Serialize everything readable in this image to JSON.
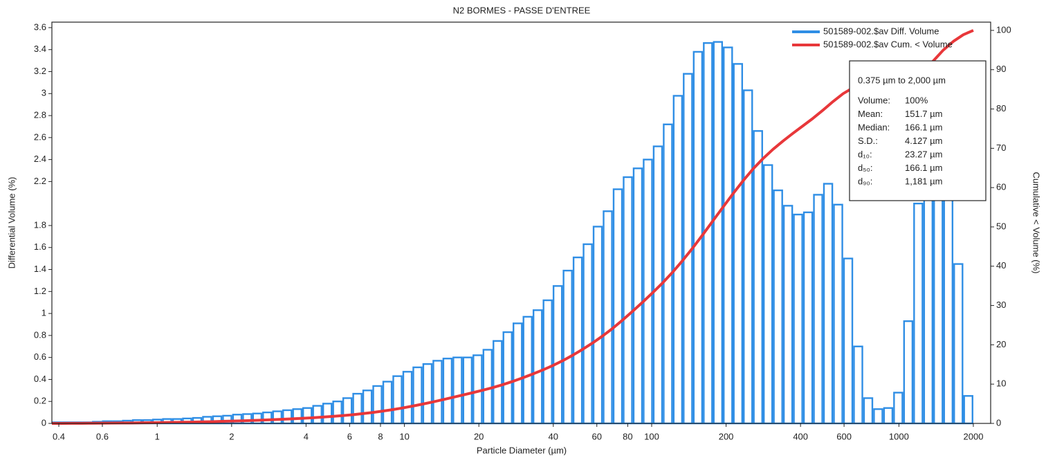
{
  "chart_data": {
    "type": "histogram",
    "title": "N2 BORMES - PASSE D'ENTREE",
    "xlabel": "Particle Diameter (µm)",
    "ylabel": "Differential Volume (%)",
    "y2label": "Cumulative < Volume (%)",
    "xscale": "log",
    "xlim": [
      0.375,
      2350
    ],
    "xticks": [
      0.4,
      0.6,
      1,
      2,
      4,
      6,
      8,
      10,
      20,
      40,
      60,
      80,
      100,
      200,
      400,
      600,
      1000,
      2000
    ],
    "ylim": [
      0,
      3.65
    ],
    "yticks": [
      0,
      0.2,
      0.4,
      0.6,
      0.8,
      1,
      1.2,
      1.4,
      1.6,
      1.8,
      2.2,
      2.4,
      2.6,
      2.8,
      3,
      3.2,
      3.4,
      3.6
    ],
    "y2lim": [
      0,
      102.1
    ],
    "y2ticks": [
      0,
      10,
      20,
      30,
      40,
      50,
      60,
      70,
      80,
      90,
      100
    ],
    "grid": false,
    "legend": "upper right",
    "bins": [
      0.375,
      0.412,
      0.452,
      0.496,
      0.545,
      0.598,
      0.657,
      0.721,
      0.791,
      0.869,
      0.954,
      1.047,
      1.149,
      1.261,
      1.385,
      1.52,
      1.669,
      1.832,
      2.011,
      2.208,
      2.423,
      2.66,
      2.92,
      3.206,
      3.519,
      3.863,
      4.241,
      4.656,
      5.111,
      5.611,
      6.159,
      6.761,
      7.422,
      8.148,
      8.944,
      9.819,
      10.78,
      11.83,
      12.99,
      14.26,
      15.65,
      17.18,
      18.86,
      20.71,
      22.73,
      24.95,
      27.39,
      30.07,
      33.01,
      36.24,
      39.78,
      43.67,
      47.94,
      52.62,
      57.77,
      63.41,
      69.61,
      76.42,
      83.89,
      92.09,
      101.1,
      111,
      121.8,
      133.7,
      146.8,
      161.2,
      176.9,
      194.2,
      213.2,
      234.1,
      256.9,
      282.1,
      309.6,
      339.9,
      373.1,
      409.6,
      449.7,
      493.6,
      541.9,
      594.9,
      653,
      716.9,
      786.9,
      863.9,
      948.3,
      1041,
      1143,
      1255,
      1377,
      1512,
      1660,
      1822,
      2000
    ],
    "series": [
      {
        "name": "501589-002.$av Diff. Volume",
        "color": "#2f8ee5",
        "type": "histogram",
        "values": [
          0.01,
          0.01,
          0.01,
          0.01,
          0.015,
          0.02,
          0.02,
          0.025,
          0.03,
          0.03,
          0.035,
          0.04,
          0.04,
          0.045,
          0.05,
          0.06,
          0.065,
          0.07,
          0.08,
          0.085,
          0.09,
          0.1,
          0.11,
          0.12,
          0.13,
          0.14,
          0.16,
          0.18,
          0.2,
          0.23,
          0.27,
          0.3,
          0.34,
          0.38,
          0.43,
          0.47,
          0.51,
          0.54,
          0.57,
          0.59,
          0.6,
          0.6,
          0.62,
          0.67,
          0.75,
          0.83,
          0.91,
          0.97,
          1.03,
          1.12,
          1.25,
          1.39,
          1.51,
          1.63,
          1.79,
          1.93,
          2.13,
          2.24,
          2.32,
          2.4,
          2.52,
          2.72,
          2.98,
          3.18,
          3.38,
          3.46,
          3.47,
          3.42,
          3.27,
          3.03,
          2.66,
          2.35,
          2.12,
          1.98,
          1.9,
          1.92,
          2.08,
          2.18,
          1.99,
          1.5,
          0.7,
          0.23,
          0.13,
          0.14,
          0.28,
          0.93,
          2.0,
          2.4,
          2.4,
          2.1,
          1.45,
          0.25
        ]
      },
      {
        "name": "501589-002.$av Cum. < Volume",
        "color": "#e8373a",
        "type": "line",
        "axis": "y2",
        "values": [
          0,
          0.01,
          0.02,
          0.03,
          0.04,
          0.06,
          0.08,
          0.1,
          0.12,
          0.15,
          0.18,
          0.22,
          0.26,
          0.3,
          0.34,
          0.39,
          0.45,
          0.52,
          0.59,
          0.67,
          0.75,
          0.84,
          0.94,
          1.05,
          1.17,
          1.3,
          1.44,
          1.6,
          1.78,
          1.98,
          2.21,
          2.48,
          2.78,
          3.12,
          3.5,
          3.93,
          4.4,
          4.91,
          5.45,
          6.02,
          6.61,
          7.21,
          7.81,
          8.43,
          9.1,
          9.85,
          10.68,
          11.59,
          12.56,
          13.59,
          14.71,
          15.96,
          17.35,
          18.86,
          20.49,
          22.28,
          24.21,
          26.34,
          28.58,
          30.9,
          33.3,
          35.82,
          38.54,
          41.52,
          44.7,
          48.08,
          51.54,
          55.01,
          58.43,
          61.7,
          64.73,
          67.39,
          69.74,
          71.86,
          73.84,
          75.74,
          77.66,
          79.74,
          81.92,
          83.91,
          85.41,
          86.11,
          86.34,
          86.47,
          86.61,
          86.89,
          87.82,
          89.82,
          92.22,
          95.0,
          97.2,
          98.9,
          100
        ]
      }
    ],
    "stats": {
      "title": "0.375 µm to 2,000 µm",
      "rows": [
        [
          "Volume:",
          "100%"
        ],
        [
          "Mean:",
          "151.7 µm"
        ],
        [
          "Median:",
          "166.1 µm"
        ],
        [
          "S.D.:",
          "4.127 µm"
        ],
        [
          "d₁₀:",
          "23.27 µm"
        ],
        [
          "d₅₀:",
          "166.1 µm"
        ],
        [
          "d₉₀:",
          "1,181 µm"
        ]
      ]
    }
  }
}
